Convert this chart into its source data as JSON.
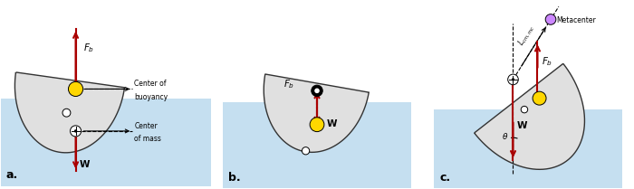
{
  "hull_color": "#e0e0e0",
  "hull_edge": "#333333",
  "water_color": "#c5dff0",
  "yellow_ball": "#FFD700",
  "purple_ball": "#CC88FF",
  "arrow_color": "#AA0000",
  "figsize": [
    7.0,
    2.09
  ],
  "dpi": 100,
  "label_a": "a.",
  "label_b": "b.",
  "label_c": "c."
}
